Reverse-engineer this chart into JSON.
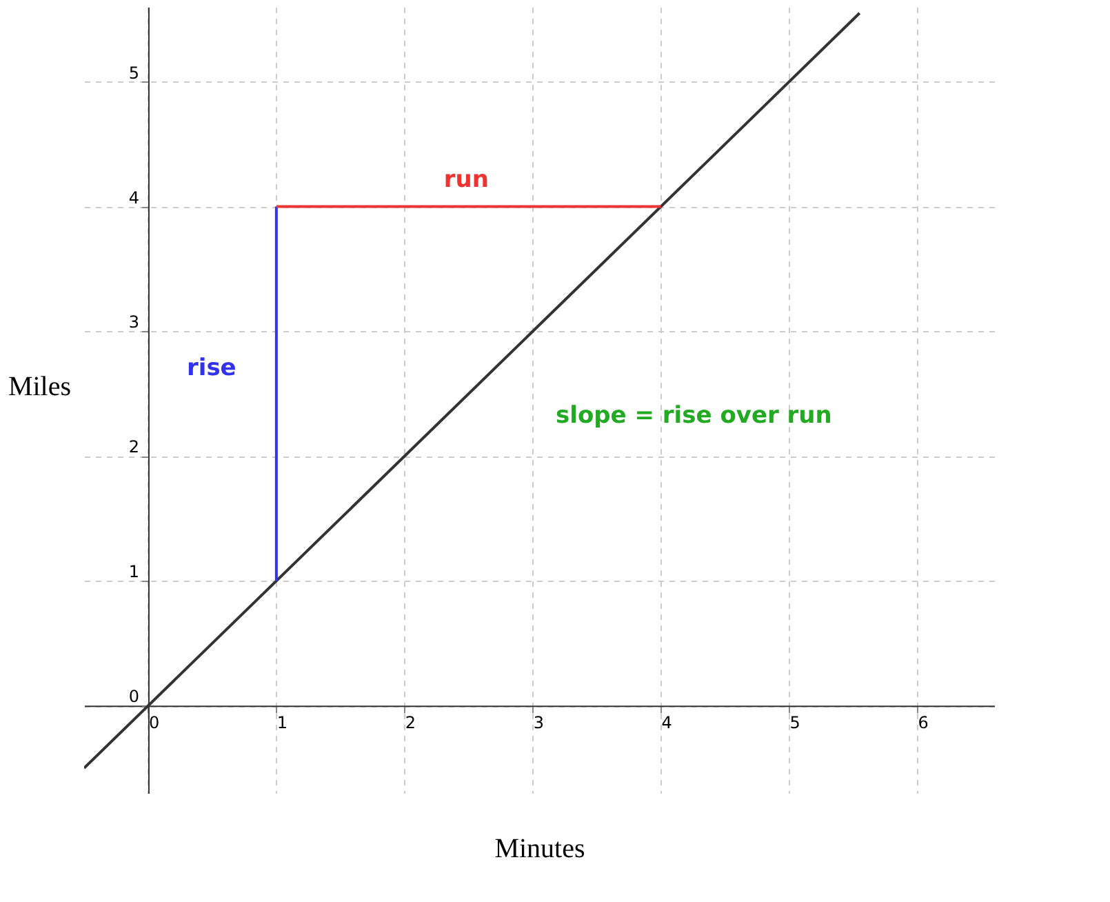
{
  "chart_data": {
    "type": "line",
    "xlabel": "Minutes",
    "ylabel": "Miles",
    "xlim": [
      -0.5,
      6.6
    ],
    "ylim": [
      -0.7,
      5.6
    ],
    "xticks": [
      0,
      1,
      2,
      3,
      4,
      5,
      6
    ],
    "yticks": [
      0,
      1,
      2,
      3,
      4,
      5
    ],
    "grid": true,
    "series": [
      {
        "color": "#333333",
        "x": [
          -0.5,
          5.55
        ],
        "values": [
          -0.5,
          5.55
        ]
      },
      {
        "color": "#3333ee",
        "x": [
          1,
          1
        ],
        "values": [
          1,
          4
        ]
      },
      {
        "color": "#ee3333",
        "x": [
          1,
          4
        ],
        "values": [
          4,
          4
        ]
      }
    ],
    "annotations": [
      "run",
      "rise",
      "slope = rise over run"
    ]
  }
}
